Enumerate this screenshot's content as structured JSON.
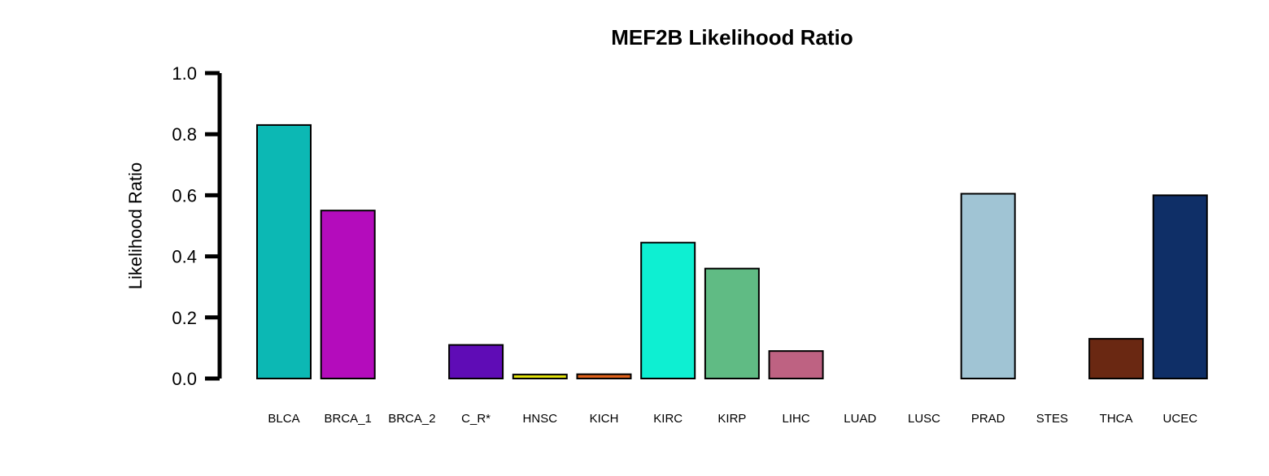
{
  "chart_data": {
    "type": "bar",
    "title": "MEF2B Likelihood Ratio",
    "xlabel": "",
    "ylabel": "Likelihood Ratio",
    "ylim": [
      0,
      1.0
    ],
    "yticks": [
      "0.0",
      "0.2",
      "0.4",
      "0.6",
      "0.8",
      "1.0"
    ],
    "grid": false,
    "categories": [
      "BLCA",
      "BRCA_1",
      "BRCA_2",
      "C_R*",
      "HNSC",
      "KICH",
      "KIRC",
      "KIRP",
      "LIHC",
      "LUAD",
      "LUSC",
      "PRAD",
      "STES",
      "THCA",
      "UCEC"
    ],
    "values": [
      0.83,
      0.55,
      0.0,
      0.11,
      0.013,
      0.014,
      0.445,
      0.36,
      0.09,
      0.0,
      0.0,
      0.605,
      0.0,
      0.13,
      0.6
    ],
    "colors": [
      "#0CB8B4",
      "#B40CBC",
      "#444444",
      "#5F0CB6",
      "#E4E40C",
      "#E0621C",
      "#0EEFD2",
      "#60BB84",
      "#BE6282",
      "#444444",
      "#444444",
      "#A0C4D4",
      "#444444",
      "#6A2812",
      "#0F2F67"
    ]
  }
}
